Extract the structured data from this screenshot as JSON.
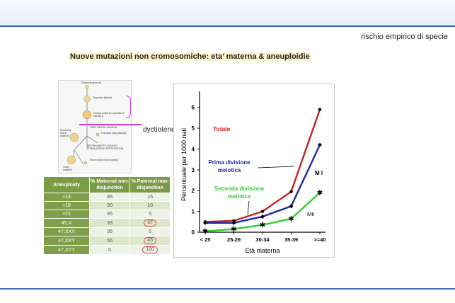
{
  "header": {
    "subtitle": "rischio empirico di specie",
    "title": "Nuove mutazioni non cromosomiche: eta’ materna & aneuploidie"
  },
  "diagram": {
    "dictyotene_label": "dyctiotene",
    "labels": [
      "Primordial germ cell",
      "Oogonium (diploid)",
      "Primary oocyte (in prophase of meiosis I)",
      "FIRST MEIOTIC DIVISION",
      "Secondary oocyte (haploid)",
      "First polar body (haploid)",
      "SECOND MEIOTIC DIVISION (STIMULATED BY FERTILIZATION)",
      "Ovum (haploid)",
      "Second polar body (haploid)"
    ]
  },
  "table": {
    "headers": [
      "Aneuploidy",
      "% Maternal non-disjunction",
      "% Paternal non-disjunction"
    ],
    "rows": [
      {
        "type": "+13",
        "maternal": "85",
        "paternal": "15",
        "circled": false
      },
      {
        "type": "+18",
        "maternal": "90",
        "paternal": "10",
        "circled": false
      },
      {
        "type": "+21",
        "maternal": "95",
        "paternal": "5",
        "circled": false
      },
      {
        "type": "45,X",
        "maternal": "33",
        "paternal": "67",
        "circled": true
      },
      {
        "type": "47,XXX",
        "maternal": "95",
        "paternal": "5",
        "circled": false
      },
      {
        "type": "47,XXY",
        "maternal": "55",
        "paternal": "45",
        "circled": true
      },
      {
        "type": "47,XYY",
        "maternal": "0",
        "paternal": "100",
        "circled": true
      }
    ]
  },
  "chart_data": {
    "type": "line",
    "xlabel": "Età materna",
    "ylabel": "Percentuale per 1000 nati",
    "categories": [
      "< 25",
      "25-29",
      "30-34",
      "35-39",
      ">=40"
    ],
    "ylim": [
      0,
      6.5
    ],
    "yticks": [
      0,
      1,
      2,
      3,
      4,
      5,
      6
    ],
    "series": [
      {
        "name": "Totale",
        "color": "#c52222",
        "marker": "dot",
        "values": [
          0.5,
          0.55,
          1.0,
          1.95,
          5.9
        ]
      },
      {
        "name": "Prima divisione meiotica",
        "color": "#1f2aa5",
        "marker": "diamond",
        "values": [
          0.45,
          0.45,
          0.75,
          1.25,
          4.2
        ]
      },
      {
        "name": "Seconda divisione meiotica",
        "color": "#35cc35",
        "marker": "star",
        "values": [
          0.05,
          0.15,
          0.35,
          0.65,
          1.9
        ]
      }
    ],
    "annotations": {
      "mi": "M I",
      "mii": "MII"
    }
  }
}
